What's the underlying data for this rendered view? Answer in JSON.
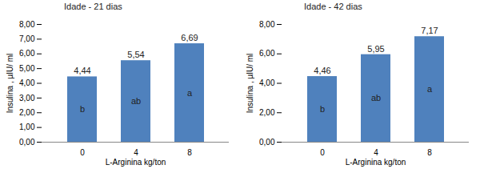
{
  "chart_data": [
    {
      "type": "bar",
      "title": "Idade - 21 dias",
      "categories": [
        "0",
        "4",
        "8"
      ],
      "values": [
        4.44,
        5.54,
        6.69
      ],
      "value_labels": [
        "4,44",
        "5,54",
        "6,69"
      ],
      "annotations": [
        "b",
        "ab",
        "a"
      ],
      "data_labels": true,
      "color": "#4f81bd",
      "xlabel": "L-Arginina kg/ton",
      "ylabel": "Insulina , µIU/ ml",
      "ylim": [
        0,
        8
      ],
      "yticks": [
        {
          "value": 0,
          "label": "0,00"
        },
        {
          "value": 1,
          "label": "1,00"
        },
        {
          "value": 2,
          "label": "2,00"
        },
        {
          "value": 3,
          "label": "3,00"
        },
        {
          "value": 4,
          "label": "4,00"
        },
        {
          "value": 5,
          "label": "5,00"
        },
        {
          "value": 6,
          "label": "6,00"
        },
        {
          "value": 7,
          "label": "7,00"
        },
        {
          "value": 8,
          "label": "8,00"
        }
      ],
      "grid": false
    },
    {
      "type": "bar",
      "title": "Idade - 42 dias",
      "categories": [
        "0",
        "4",
        "8"
      ],
      "values": [
        4.46,
        5.95,
        7.17
      ],
      "value_labels": [
        "4,46",
        "5,95",
        "7,17"
      ],
      "annotations": [
        "b",
        "ab",
        "a"
      ],
      "data_labels": true,
      "color": "#4f81bd",
      "xlabel": "L-Arginina kg/ton",
      "ylabel": "Insulina , µIU/ ml",
      "ylim": [
        0,
        8
      ],
      "yticks": [
        {
          "value": 0,
          "label": "0,00"
        },
        {
          "value": 2,
          "label": "2,00"
        },
        {
          "value": 4,
          "label": "4,00"
        },
        {
          "value": 6,
          "label": "6,00"
        },
        {
          "value": 8,
          "label": "8,00"
        }
      ],
      "grid": false
    }
  ]
}
